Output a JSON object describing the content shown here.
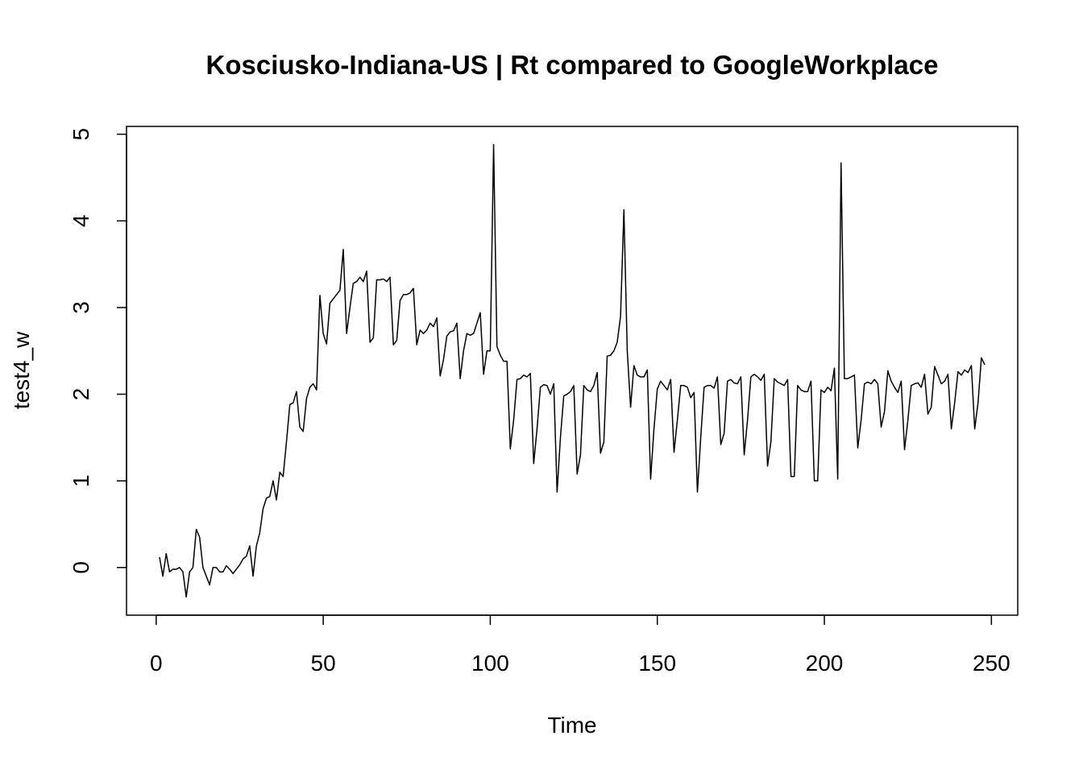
{
  "chart_data": {
    "type": "line",
    "title": "Kosciusko-Indiana-US | Rt compared to GoogleWorkplace",
    "x_label": "Time",
    "y_label": "test4_w",
    "color": "#000000",
    "x": [
      1,
      2,
      3,
      4,
      5,
      6,
      7,
      8,
      9,
      10,
      11,
      12,
      13,
      14,
      15,
      16,
      17,
      18,
      19,
      20,
      21,
      22,
      23,
      24,
      25,
      26,
      27,
      28,
      29,
      30,
      31,
      32,
      33,
      34,
      35,
      36,
      37,
      38,
      39,
      40,
      41,
      42,
      43,
      44,
      45,
      46,
      47,
      48,
      49,
      50,
      51,
      52,
      53,
      54,
      55,
      56,
      57,
      58,
      59,
      60,
      61,
      62,
      63,
      64,
      65,
      66,
      67,
      68,
      69,
      70,
      71,
      72,
      73,
      74,
      75,
      76,
      77,
      78,
      79,
      80,
      81,
      82,
      83,
      84,
      85,
      86,
      87,
      88,
      89,
      90,
      91,
      92,
      93,
      94,
      95,
      96,
      97,
      98,
      99,
      100,
      101,
      102,
      103,
      104,
      105,
      106,
      107,
      108,
      109,
      110,
      111,
      112,
      113,
      114,
      115,
      116,
      117,
      118,
      119,
      120,
      121,
      122,
      123,
      124,
      125,
      126,
      127,
      128,
      129,
      130,
      131,
      132,
      133,
      134,
      135,
      136,
      137,
      138,
      139,
      140,
      141,
      142,
      143,
      144,
      145,
      146,
      147,
      148,
      149,
      150,
      151,
      152,
      153,
      154,
      155,
      156,
      157,
      158,
      159,
      160,
      161,
      162,
      163,
      164,
      165,
      166,
      167,
      168,
      169,
      170,
      171,
      172,
      173,
      174,
      175,
      176,
      177,
      178,
      179,
      180,
      181,
      182,
      183,
      184,
      185,
      186,
      187,
      188,
      189,
      190,
      191,
      192,
      193,
      194,
      195,
      196,
      197,
      198,
      199,
      200,
      201,
      202,
      203,
      204,
      205,
      206,
      207,
      208,
      209,
      210,
      211,
      212,
      213,
      214,
      215,
      216,
      217,
      218,
      219,
      220,
      221,
      222,
      223,
      224,
      225,
      226,
      227,
      228,
      229,
      230,
      231,
      232,
      233,
      234,
      235,
      236,
      237,
      238,
      239,
      240,
      241,
      242,
      243,
      244,
      245,
      246,
      247,
      248
    ],
    "values": [
      0.12,
      -0.1,
      0.16,
      -0.05,
      -0.02,
      -0.02,
      0.0,
      -0.05,
      -0.34,
      -0.05,
      0.0,
      0.44,
      0.35,
      0.0,
      -0.1,
      -0.2,
      0.0,
      0.0,
      -0.05,
      -0.05,
      0.02,
      -0.02,
      -0.07,
      -0.02,
      0.03,
      0.1,
      0.13,
      0.25,
      -0.1,
      0.25,
      0.4,
      0.68,
      0.8,
      0.82,
      1.0,
      0.78,
      1.1,
      1.05,
      1.45,
      1.88,
      1.9,
      2.03,
      1.62,
      1.57,
      1.95,
      2.08,
      2.12,
      2.05,
      3.14,
      2.7,
      2.58,
      3.05,
      3.1,
      3.15,
      3.2,
      3.67,
      2.7,
      3.0,
      3.28,
      3.3,
      3.35,
      3.3,
      3.42,
      2.6,
      2.65,
      3.32,
      3.32,
      3.33,
      3.3,
      3.35,
      2.57,
      2.62,
      3.08,
      3.15,
      3.15,
      3.17,
      3.22,
      2.57,
      2.74,
      2.7,
      2.74,
      2.82,
      2.78,
      2.88,
      2.21,
      2.4,
      2.67,
      2.72,
      2.73,
      2.82,
      2.18,
      2.5,
      2.7,
      2.68,
      2.7,
      2.82,
      2.94,
      2.23,
      2.5,
      2.5,
      4.88,
      2.55,
      2.45,
      2.38,
      2.38,
      1.37,
      1.7,
      2.17,
      2.18,
      2.22,
      2.2,
      2.24,
      1.2,
      1.6,
      2.08,
      2.11,
      2.1,
      2.0,
      2.12,
      0.87,
      1.5,
      1.98,
      2.0,
      2.03,
      2.1,
      1.08,
      1.3,
      2.1,
      2.05,
      2.03,
      2.1,
      2.25,
      1.32,
      1.45,
      2.44,
      2.45,
      2.5,
      2.6,
      2.9,
      4.13,
      2.5,
      1.85,
      2.33,
      2.22,
      2.2,
      2.2,
      2.28,
      1.02,
      1.6,
      2.06,
      2.15,
      2.1,
      2.05,
      2.17,
      1.33,
      1.7,
      2.1,
      2.1,
      2.08,
      1.96,
      2.02,
      0.87,
      1.5,
      2.08,
      2.1,
      2.1,
      2.07,
      2.2,
      1.42,
      1.55,
      2.15,
      2.17,
      2.13,
      2.12,
      2.2,
      1.3,
      1.7,
      2.2,
      2.23,
      2.2,
      2.16,
      2.23,
      1.17,
      1.45,
      2.18,
      2.14,
      2.12,
      2.1,
      2.17,
      1.05,
      1.05,
      2.1,
      2.05,
      2.03,
      2.03,
      2.15,
      1.0,
      1.0,
      2.05,
      2.02,
      2.08,
      2.04,
      2.3,
      1.02,
      4.67,
      2.18,
      2.18,
      2.2,
      2.22,
      1.38,
      1.7,
      2.12,
      2.14,
      2.12,
      2.17,
      2.12,
      1.62,
      1.8,
      2.27,
      2.15,
      2.08,
      2.02,
      2.15,
      1.36,
      1.7,
      2.1,
      2.12,
      2.13,
      2.08,
      2.23,
      1.77,
      1.85,
      2.32,
      2.22,
      2.12,
      2.15,
      2.23,
      1.6,
      1.9,
      2.26,
      2.22,
      2.28,
      2.25,
      2.33,
      1.6,
      1.9,
      2.42,
      2.34
    ],
    "xlim": [
      -8.88,
      257.88
    ],
    "ylim": [
      -0.55,
      5.09
    ],
    "xticks": [
      0,
      50,
      100,
      150,
      200,
      250
    ],
    "yticks": [
      0,
      1,
      2,
      3,
      4,
      5
    ]
  }
}
